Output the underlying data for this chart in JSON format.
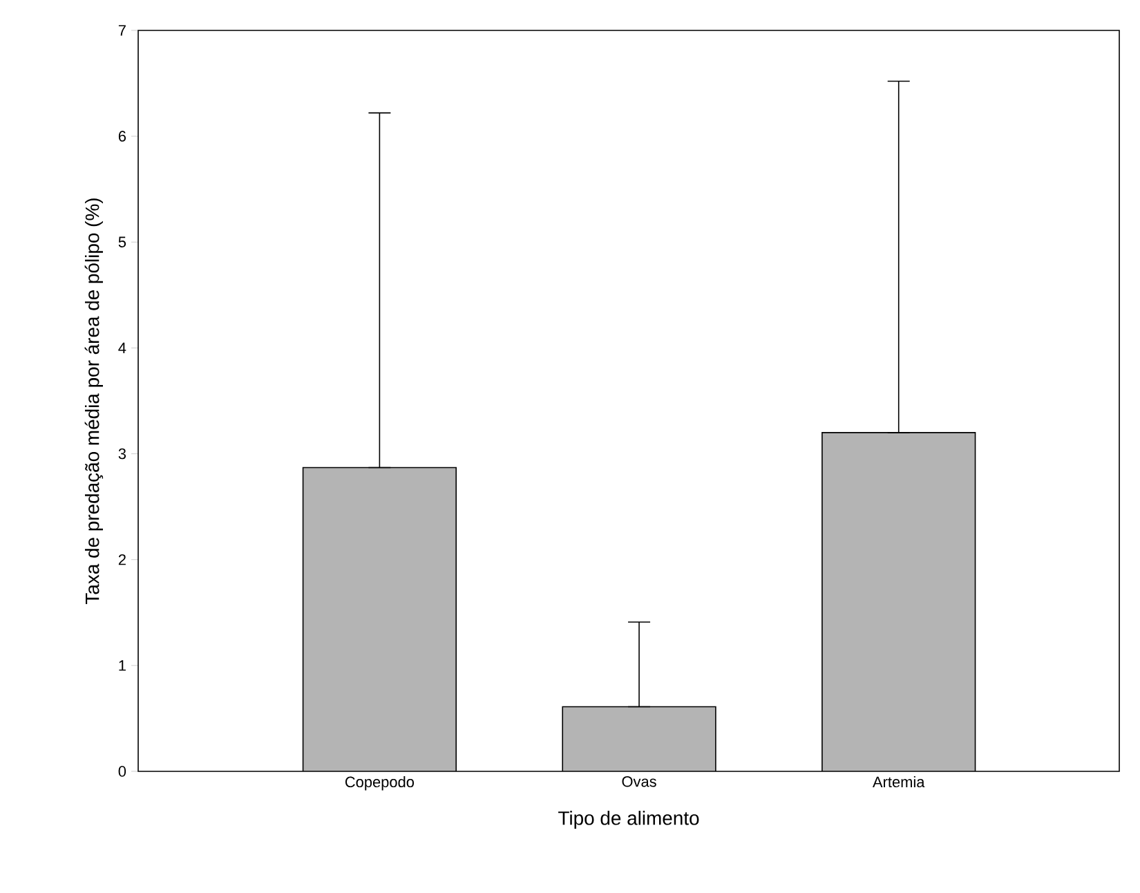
{
  "chart_data": {
    "type": "bar",
    "xlabel": "Tipo de alimento",
    "ylabel": "Taxa de predação média por área de pólipo (%)",
    "categories": [
      "Copepodo",
      "Ovas",
      "Artemia"
    ],
    "values": [
      2.87,
      0.61,
      3.2
    ],
    "errors": [
      [
        2.87,
        6.22
      ],
      [
        0.61,
        1.41
      ],
      [
        3.2,
        6.52
      ]
    ],
    "color": "#b4b4b4",
    "ylim": [
      0,
      7
    ],
    "yticks": [
      0,
      1,
      2,
      3,
      4,
      5,
      6,
      7
    ],
    "grid": false
  }
}
